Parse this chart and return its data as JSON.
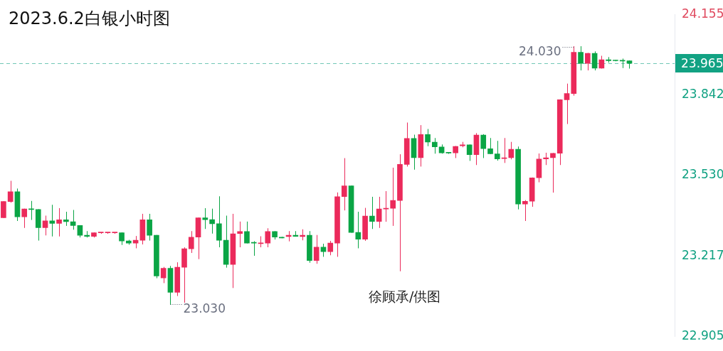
{
  "chart_data": {
    "type": "candlestick",
    "title": "2023.6.2白银小时图",
    "categories": [
      null,
      null,
      null,
      null,
      null,
      null,
      null,
      null,
      null,
      null,
      null,
      null,
      null,
      null,
      null,
      null,
      null,
      null,
      null,
      null,
      null,
      null,
      null,
      null,
      null,
      null,
      null,
      null,
      null,
      null,
      null,
      null,
      null,
      null,
      null,
      null,
      null,
      null,
      null,
      null,
      null,
      null,
      null,
      null,
      null,
      null,
      null,
      null,
      null,
      null,
      null,
      null,
      null,
      null,
      null,
      null,
      null,
      null,
      null,
      null,
      null,
      null,
      null,
      null,
      null,
      null,
      null,
      null,
      null,
      null,
      null,
      null,
      null,
      null,
      null,
      null,
      null,
      null,
      null,
      null,
      null,
      null,
      null,
      null,
      null,
      null,
      null,
      null,
      null,
      null,
      null,
      null,
      null,
      null,
      null,
      null,
      null
    ],
    "ohlc": [
      [
        23.366,
        23.429,
        23.366,
        23.429
      ],
      [
        23.429,
        23.508,
        23.426,
        23.467
      ],
      [
        23.467,
        23.478,
        23.355,
        23.37
      ],
      [
        23.37,
        23.4,
        23.328,
        23.4
      ],
      [
        23.4,
        23.43,
        23.359,
        23.398
      ],
      [
        23.398,
        23.398,
        23.279,
        23.328
      ],
      [
        23.328,
        23.373,
        23.299,
        23.354
      ],
      [
        23.354,
        23.415,
        23.295,
        23.344
      ],
      [
        23.344,
        23.402,
        23.295,
        23.358
      ],
      [
        23.358,
        23.388,
        23.336,
        23.351
      ],
      [
        23.351,
        23.395,
        23.321,
        23.336
      ],
      [
        23.336,
        23.336,
        23.291,
        23.298
      ],
      [
        23.298,
        23.313,
        23.291,
        23.294
      ],
      [
        23.294,
        23.308,
        23.291,
        23.308
      ],
      [
        23.308,
        23.308,
        23.308,
        23.308
      ],
      [
        23.308,
        23.308,
        23.308,
        23.308
      ],
      [
        23.308,
        23.308,
        23.308,
        23.308
      ],
      [
        23.308,
        23.308,
        23.262,
        23.276
      ],
      [
        23.276,
        23.279,
        23.263,
        23.268
      ],
      [
        23.268,
        23.294,
        23.249,
        23.279
      ],
      [
        23.279,
        23.38,
        23.264,
        23.358
      ],
      [
        23.358,
        23.38,
        23.279,
        23.298
      ],
      [
        23.298,
        23.298,
        23.133,
        23.14
      ],
      [
        23.133,
        23.174,
        23.114,
        23.17
      ],
      [
        23.17,
        23.178,
        23.03,
        23.077
      ],
      [
        23.077,
        23.192,
        23.064,
        23.174
      ],
      [
        23.174,
        23.25,
        23.038,
        23.246
      ],
      [
        23.246,
        23.313,
        23.231,
        23.291
      ],
      [
        23.291,
        23.366,
        23.207,
        23.366
      ],
      [
        23.366,
        23.402,
        23.324,
        23.359
      ],
      [
        23.359,
        23.4,
        23.306,
        23.343
      ],
      [
        23.343,
        23.448,
        23.253,
        23.279
      ],
      [
        23.279,
        23.373,
        23.174,
        23.185
      ],
      [
        23.185,
        23.38,
        23.095,
        23.304
      ],
      [
        23.305,
        23.35,
        23.253,
        23.313
      ],
      [
        23.313,
        23.35,
        23.268,
        23.268
      ],
      [
        23.27,
        23.274,
        23.22,
        23.268
      ],
      [
        23.266,
        23.293,
        23.253,
        23.269
      ],
      [
        23.268,
        23.324,
        23.253,
        23.313
      ],
      [
        23.313,
        23.313,
        23.283,
        23.291
      ],
      [
        23.291,
        23.291,
        23.288,
        23.288
      ],
      [
        23.293,
        23.313,
        23.276,
        23.298
      ],
      [
        23.298,
        23.313,
        23.294,
        23.294
      ],
      [
        23.293,
        23.32,
        23.28,
        23.298
      ],
      [
        23.298,
        23.313,
        23.193,
        23.2
      ],
      [
        23.2,
        23.298,
        23.189,
        23.252
      ],
      [
        23.252,
        23.264,
        23.216,
        23.235
      ],
      [
        23.235,
        23.275,
        23.222,
        23.268
      ],
      [
        23.268,
        23.463,
        23.216,
        23.448
      ],
      [
        23.448,
        23.596,
        23.396,
        23.49
      ],
      [
        23.49,
        23.49,
        23.309,
        23.309
      ],
      [
        23.309,
        23.388,
        23.249,
        23.283
      ],
      [
        23.283,
        23.403,
        23.278,
        23.373
      ],
      [
        23.373,
        23.446,
        23.324,
        23.352
      ],
      [
        23.352,
        23.446,
        23.328,
        23.4
      ],
      [
        23.4,
        23.468,
        23.352,
        23.403
      ],
      [
        23.403,
        23.559,
        23.336,
        23.433
      ],
      [
        23.433,
        23.611,
        23.16,
        23.573
      ],
      [
        23.573,
        23.734,
        23.566,
        23.674
      ],
      [
        23.674,
        23.687,
        23.554,
        23.599
      ],
      [
        23.599,
        23.724,
        23.566,
        23.689
      ],
      [
        23.689,
        23.709,
        23.645,
        23.66
      ],
      [
        23.659,
        23.674,
        23.616,
        23.641
      ],
      [
        23.641,
        23.649,
        23.616,
        23.618
      ],
      [
        23.618,
        23.618,
        23.617,
        23.617
      ],
      [
        23.618,
        23.643,
        23.599,
        23.643
      ],
      [
        23.645,
        23.659,
        23.641,
        23.649
      ],
      [
        23.649,
        23.649,
        23.588,
        23.611
      ],
      [
        23.611,
        23.693,
        23.572,
        23.687
      ],
      [
        23.687,
        23.689,
        23.599,
        23.634
      ],
      [
        23.634,
        23.674,
        23.614,
        23.614
      ],
      [
        23.614,
        23.663,
        23.589,
        23.594
      ],
      [
        23.596,
        23.674,
        23.58,
        23.599
      ],
      [
        23.599,
        23.659,
        23.594,
        23.632
      ],
      [
        23.632,
        23.641,
        23.4,
        23.419
      ],
      [
        23.419,
        23.433,
        23.355,
        23.43
      ],
      [
        23.43,
        23.521,
        23.41,
        23.521
      ],
      [
        23.521,
        23.614,
        23.505,
        23.594
      ],
      [
        23.594,
        23.617,
        23.572,
        23.599
      ],
      [
        23.599,
        23.616,
        23.465,
        23.616
      ],
      [
        23.616,
        23.824,
        23.572,
        23.824
      ],
      [
        23.824,
        23.885,
        23.731,
        23.848
      ],
      [
        23.848,
        24.03,
        23.841,
        24.008
      ],
      [
        24.008,
        24.03,
        23.939,
        23.965
      ],
      [
        23.965,
        24.004,
        23.939,
        24.004
      ],
      [
        24.004,
        24.01,
        23.939,
        23.946
      ],
      [
        23.946,
        23.993,
        23.946,
        23.979
      ],
      [
        23.979,
        23.988,
        23.969,
        23.975
      ],
      [
        23.977,
        23.977,
        23.975,
        23.975
      ],
      [
        23.975,
        23.982,
        23.948,
        23.974
      ],
      [
        23.975,
        23.975,
        23.946,
        23.965
      ],
      null,
      null,
      null,
      null,
      null,
      null
    ],
    "colors": [
      "#eb2a5b",
      "#eb2a5b",
      "#0aa545",
      "#eb2a5b",
      "#0aa545",
      "#0aa545",
      "#eb2a5b",
      "#0aa545",
      "#eb2a5b",
      "#0aa545",
      "#0aa545",
      "#0aa545",
      "#0aa545",
      "#eb2a5b",
      "#eb2a5b",
      "#eb2a5b",
      "#eb2a5b",
      "#0aa545",
      "#0aa545",
      "#eb2a5b",
      "#eb2a5b",
      "#0aa545",
      "#0aa545",
      "#eb2a5b",
      "#0aa545",
      "#eb2a5b",
      "#eb2a5b",
      "#eb2a5b",
      "#eb2a5b",
      "#0aa545",
      "#0aa545",
      "#0aa545",
      "#0aa545",
      "#eb2a5b",
      "#eb2a5b",
      "#0aa545",
      "#0aa545",
      "#eb2a5b",
      "#eb2a5b",
      "#0aa545",
      "#0aa545",
      "#eb2a5b",
      "#0aa545",
      "#eb2a5b",
      "#0aa545",
      "#eb2a5b",
      "#0aa545",
      "#eb2a5b",
      "#eb2a5b",
      "#eb2a5b",
      "#0aa545",
      "#0aa545",
      "#eb2a5b",
      "#0aa545",
      "#eb2a5b",
      "#eb2a5b",
      "#eb2a5b",
      "#eb2a5b",
      "#eb2a5b",
      "#0aa545",
      "#eb2a5b",
      "#0aa545",
      "#0aa545",
      "#0aa545",
      "#0aa545",
      "#eb2a5b",
      "#eb2a5b",
      "#0aa545",
      "#eb2a5b",
      "#0aa545",
      "#0aa545",
      "#0aa545",
      "#eb2a5b",
      "#eb2a5b",
      "#0aa545",
      "#eb2a5b",
      "#eb2a5b",
      "#eb2a5b",
      "#eb2a5b",
      "#eb2a5b",
      "#eb2a5b",
      "#eb2a5b",
      "#eb2a5b",
      "#0aa545",
      "#eb2a5b",
      "#0aa545",
      "#eb2a5b",
      "#0aa545",
      "#0aa545",
      "#0aa545",
      "#0aa545",
      null,
      null,
      null,
      null,
      null,
      null
    ],
    "ylim": [
      22.905,
      24.155
    ],
    "yticks": [
      22.905,
      23.217,
      {
        "value": 23.53,
        "label": "23.530"
      },
      23.842,
      24.155
    ],
    "tick_labels": "y",
    "ref_lines": [
      {
        "axis": "y",
        "value": 23.965,
        "label": "23.965",
        "color": "#12a283",
        "line_style": "dashed"
      }
    ],
    "annotations": [
      "24.030",
      "23.030",
      "徐顾承/供图"
    ],
    "grid": false,
    "legend": false
  }
}
